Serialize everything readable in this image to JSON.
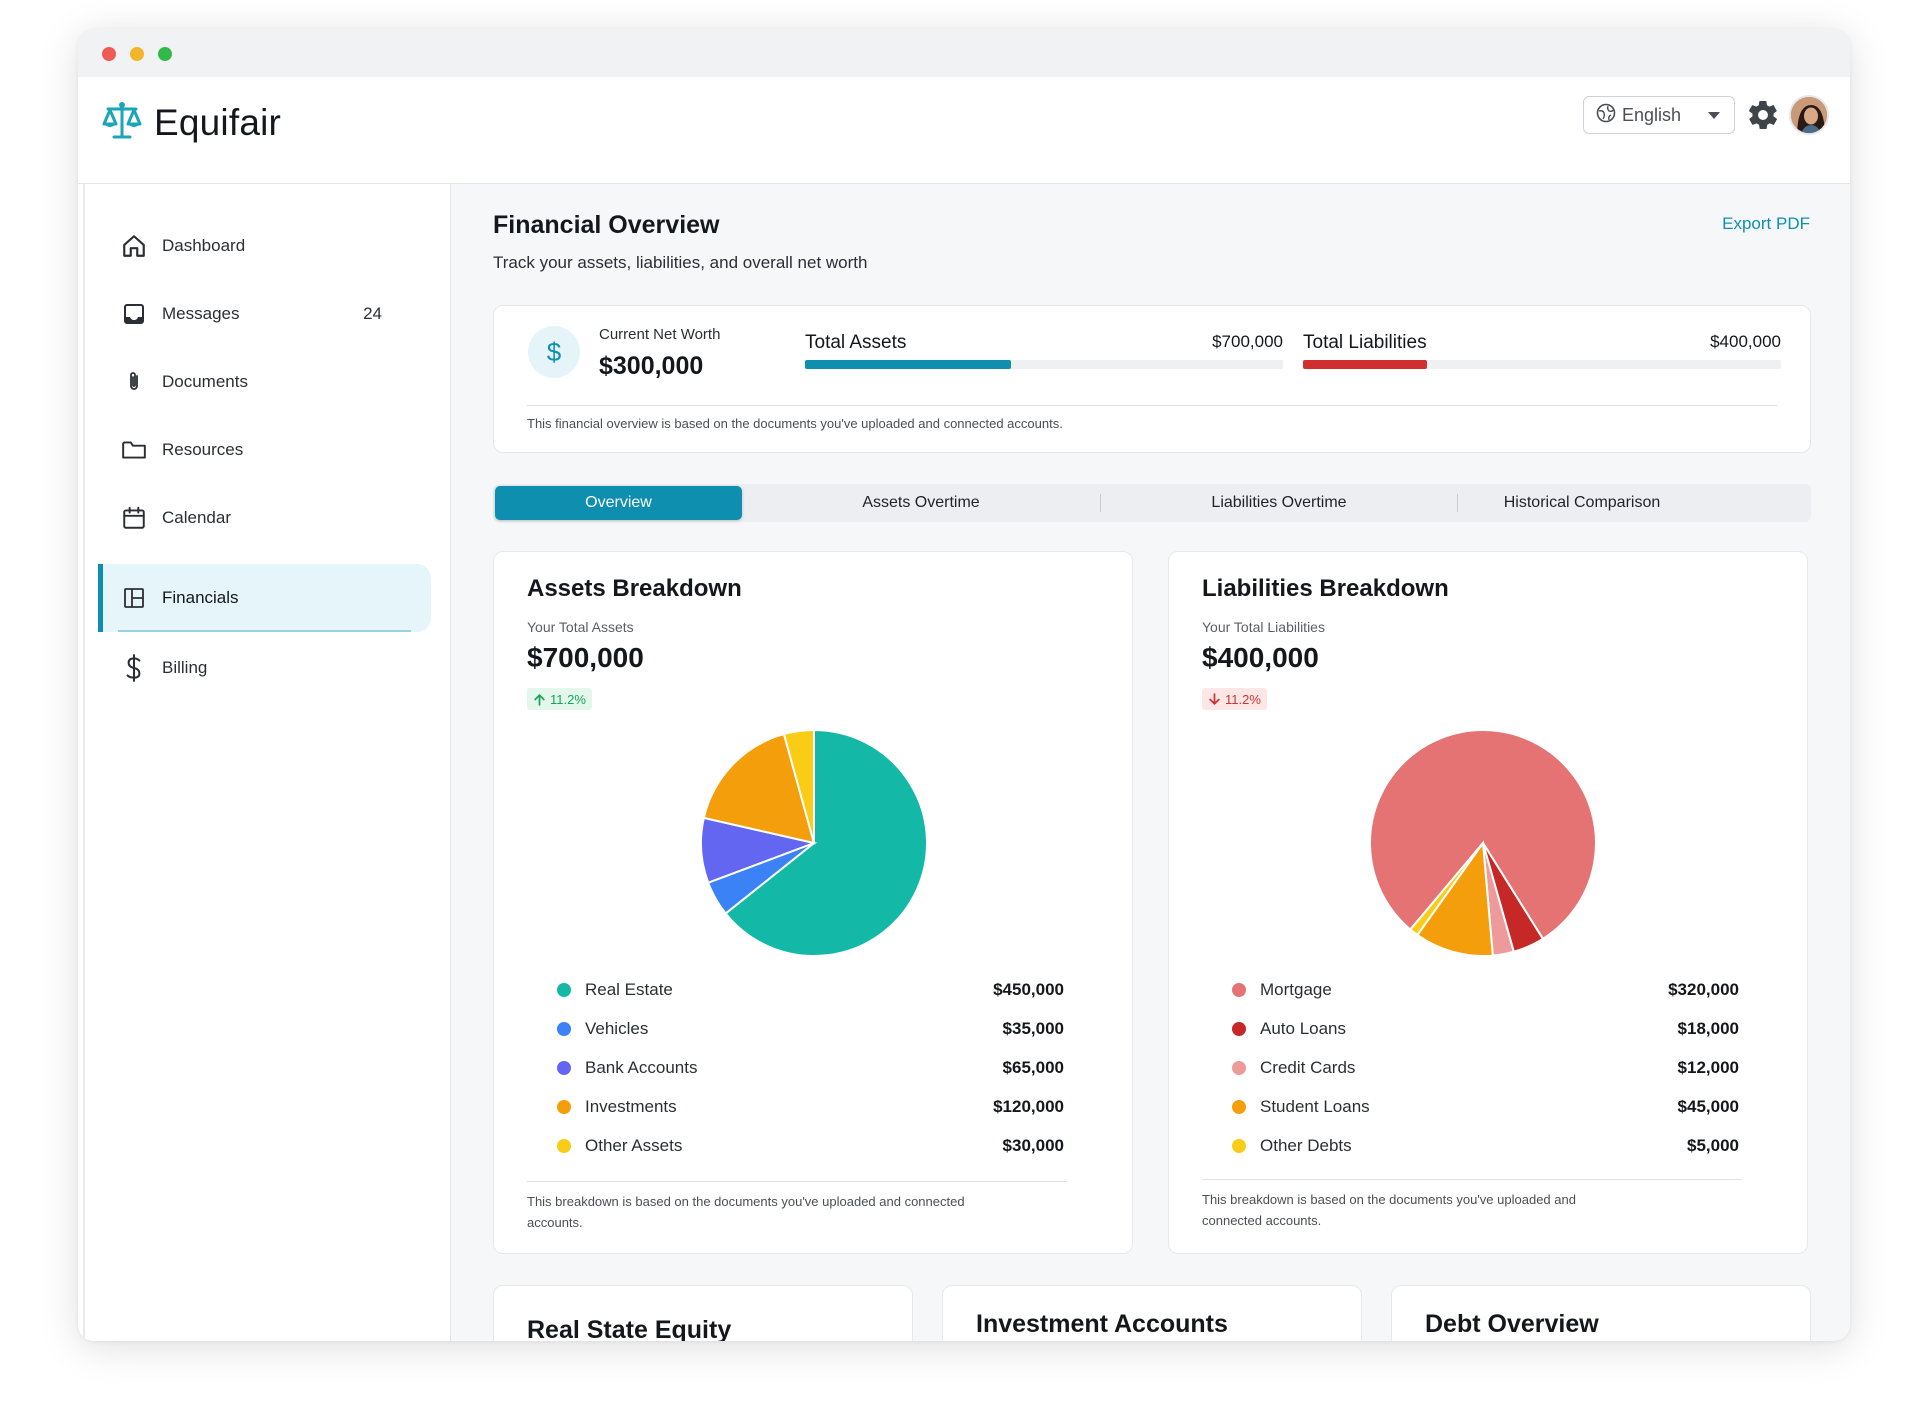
{
  "app": {
    "name": "Equifair"
  },
  "header": {
    "language": "English"
  },
  "sidebar": {
    "items": [
      {
        "label": "Dashboard",
        "icon": "home-icon"
      },
      {
        "label": "Messages",
        "icon": "inbox-icon",
        "count": "24"
      },
      {
        "label": "Documents",
        "icon": "paperclip-icon"
      },
      {
        "label": "Resources",
        "icon": "folder-icon"
      },
      {
        "label": "Calendar",
        "icon": "calendar-icon"
      },
      {
        "label": "Financials",
        "icon": "layout-icon",
        "active": true
      },
      {
        "label": "Billing",
        "icon": "dollar-icon"
      }
    ]
  },
  "page": {
    "title": "Financial Overview",
    "subtitle": "Track your assets, liabilities, and overall net worth",
    "export_label": "Export PDF"
  },
  "summary": {
    "net_worth_label": "Current Net Worth",
    "net_worth_value": "$300,000",
    "assets_label": "Total Assets",
    "assets_value": "$700,000",
    "assets_progress": 0.43,
    "liabilities_label": "Total Liabilities",
    "liabilities_value": "$400,000",
    "liabilities_progress": 0.26,
    "note": "This financial overview is based on the documents you've uploaded and connected accounts.",
    "colors": {
      "assets": "#0e8fb0",
      "liabilities": "#d12f2f"
    }
  },
  "tabs": [
    {
      "label": "Overview",
      "active": true
    },
    {
      "label": "Assets Overtime"
    },
    {
      "label": "Liabilities Overtime"
    },
    {
      "label": "Historical Comparison"
    }
  ],
  "assets": {
    "title": "Assets Breakdown",
    "sub": "Your Total Assets",
    "total": "$700,000",
    "trend": "11.2%",
    "note": "This breakdown is based on the documents you've uploaded and connected accounts.",
    "items": [
      {
        "name": "Real Estate",
        "value": "$450,000",
        "amount": 450000,
        "color": "#14b8a6"
      },
      {
        "name": "Vehicles",
        "value": "$35,000",
        "amount": 35000,
        "color": "#3b82f6"
      },
      {
        "name": "Bank Accounts",
        "value": "$65,000",
        "amount": 65000,
        "color": "#6366f1"
      },
      {
        "name": "Investments",
        "value": "$120,000",
        "amount": 120000,
        "color": "#f59e0b"
      },
      {
        "name": "Other Assets",
        "value": "$30,000",
        "amount": 30000,
        "color": "#facc15"
      }
    ]
  },
  "liabilities": {
    "title": "Liabilities Breakdown",
    "sub": "Your Total Liabilities",
    "total": "$400,000",
    "trend": "11.2%",
    "note": "This breakdown is based on the documents you've uploaded and connected accounts.",
    "items": [
      {
        "name": "Mortgage",
        "value": "$320,000",
        "amount": 320000,
        "color": "#e57373"
      },
      {
        "name": "Auto Loans",
        "value": "$18,000",
        "amount": 18000,
        "color": "#c62828"
      },
      {
        "name": "Credit Cards",
        "value": "$12,000",
        "amount": 12000,
        "color": "#ef9a9a"
      },
      {
        "name": "Student Loans",
        "value": "$45,000",
        "amount": 45000,
        "color": "#f59e0b"
      },
      {
        "name": "Other Debts",
        "value": "$5,000",
        "amount": 5000,
        "color": "#facc15"
      }
    ]
  },
  "bottom_cards": [
    {
      "title": "Real State Equity"
    },
    {
      "title": "Investment Accounts"
    },
    {
      "title": "Debt Overview"
    }
  ]
}
